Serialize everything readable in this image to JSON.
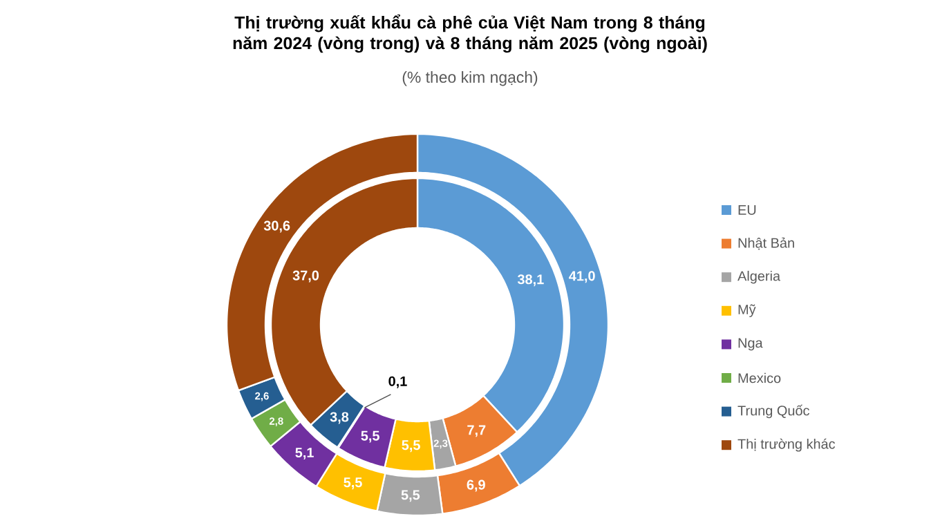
{
  "chart_data": {
    "type": "donut",
    "title": "Thị trường xuất khẩu cà phê của Việt Nam trong 8 tháng năm 2024 (vòng trong) và 8 tháng năm 2025 (vòng ngoài)",
    "subtitle": "(% theo kim ngạch)",
    "categories": [
      "EU",
      "Nhật Bản",
      "Algeria",
      "Mỹ",
      "Nga",
      "Mexico",
      "Trung Quốc",
      "Thị trường khác"
    ],
    "colors": [
      "#5b9bd5",
      "#ed7d31",
      "#a5a5a5",
      "#ffc000",
      "#7030a0",
      "#70ad47",
      "#255e91",
      "#9e480e"
    ],
    "series": [
      {
        "values": [
          38.1,
          7.7,
          2.3,
          5.5,
          5.5,
          0.1,
          3.8,
          37.0
        ],
        "value_labels": [
          "38,1",
          "7,7",
          "2,3",
          "5,5",
          "5,5",
          "0,1",
          "3,8",
          "37,0"
        ]
      },
      {
        "values": [
          41.0,
          6.9,
          5.5,
          5.5,
          5.1,
          2.8,
          2.6,
          30.6
        ],
        "value_labels": [
          "41,0",
          "6,9",
          "5,5",
          "5,5",
          "5,1",
          "2,8",
          "2,6",
          "30,6"
        ]
      }
    ],
    "legend": "right"
  }
}
